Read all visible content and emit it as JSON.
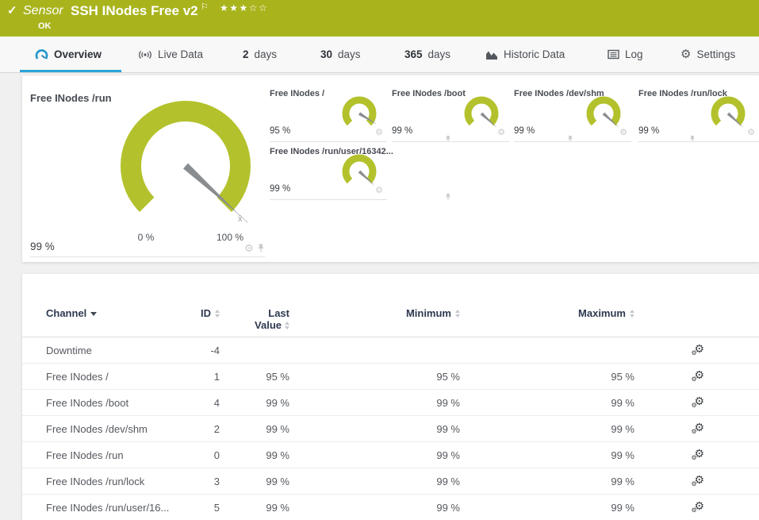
{
  "topbar": {
    "kind": "Sensor",
    "title": "SSH INodes Free v2",
    "status": "OK",
    "stars": "★★★☆☆"
  },
  "icons": {
    "check": "✓",
    "flag": "⚐",
    "gear": "⚙"
  },
  "tabs": {
    "overview": "Overview",
    "live": "Live Data",
    "d2_num": "2",
    "d2": "days",
    "d30_num": "30",
    "d30": "days",
    "d365_num": "365",
    "d365": "days",
    "historic": "Historic Data",
    "log": "Log",
    "settings": "Settings"
  },
  "gauges": {
    "gauge_color": "#b3c22c",
    "needle_color": "#8a8d90",
    "primary": {
      "title": "Free INodes /run",
      "value": 99,
      "value_label": "99 %",
      "min_label": "0 %",
      "max_label": "100 %",
      "mean_marker": "x̄"
    },
    "mini": [
      {
        "title": "Free INodes /",
        "value": 95,
        "value_label": "95 %"
      },
      {
        "title": "Free INodes /boot",
        "value": 99,
        "value_label": "99 %"
      },
      {
        "title": "Free INodes /dev/shm",
        "value": 99,
        "value_label": "99 %"
      },
      {
        "title": "Free INodes /run/lock",
        "value": 99,
        "value_label": "99 %"
      },
      {
        "title": "Free INodes /run/user/16342...",
        "value": 99,
        "value_label": "99 %"
      }
    ]
  },
  "table": {
    "headers": {
      "channel": "Channel",
      "id": "ID",
      "last1": "Last",
      "last2": "Value",
      "min": "Minimum",
      "max": "Maximum"
    },
    "rows": [
      {
        "channel": "Downtime",
        "id": "-4",
        "last": "",
        "min": "",
        "max": ""
      },
      {
        "channel": "Free INodes /",
        "id": "1",
        "last": "95 %",
        "min": "95 %",
        "max": "95 %"
      },
      {
        "channel": "Free INodes /boot",
        "id": "4",
        "last": "99 %",
        "min": "99 %",
        "max": "99 %"
      },
      {
        "channel": "Free INodes /dev/shm",
        "id": "2",
        "last": "99 %",
        "min": "99 %",
        "max": "99 %"
      },
      {
        "channel": "Free INodes /run",
        "id": "0",
        "last": "99 %",
        "min": "99 %",
        "max": "99 %"
      },
      {
        "channel": "Free INodes /run/lock",
        "id": "3",
        "last": "99 %",
        "min": "99 %",
        "max": "99 %"
      },
      {
        "channel": "Free INodes /run/user/16...",
        "id": "5",
        "last": "99 %",
        "min": "99 %",
        "max": "99 %"
      }
    ]
  }
}
